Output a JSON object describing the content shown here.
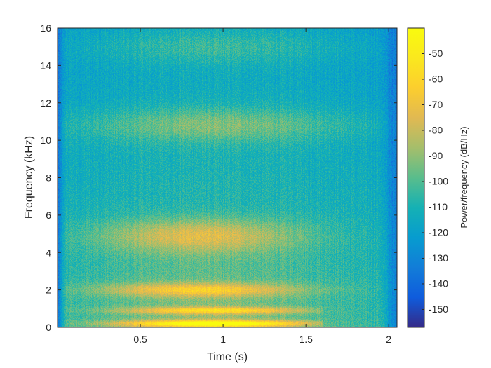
{
  "chart_data": {
    "type": "heatmap",
    "title": "",
    "xlabel": "Time (s)",
    "ylabel": "Frequency (kHz)",
    "xlim": [
      0.0,
      2.05
    ],
    "ylim": [
      0,
      16
    ],
    "xticks": [
      0.5,
      1,
      1.5,
      2
    ],
    "xtick_labels": [
      "0.5",
      "1",
      "1.5",
      "2"
    ],
    "yticks": [
      0,
      2,
      4,
      6,
      8,
      10,
      12,
      14,
      16
    ],
    "ytick_labels": [
      "0",
      "2",
      "4",
      "6",
      "8",
      "10",
      "12",
      "14",
      "16"
    ],
    "grid": false,
    "colormap": "parula",
    "colorbar": {
      "label": "Power/frequency (dB/Hz)",
      "range": [
        -157,
        -40
      ],
      "ticks": [
        -50,
        -60,
        -70,
        -80,
        -90,
        -100,
        -110,
        -120,
        -130,
        -140,
        -150
      ],
      "tick_labels": [
        "-50",
        "-60",
        "-70",
        "-80",
        "-90",
        "-100",
        "-110",
        "-120",
        "-130",
        "-140",
        "-150"
      ]
    },
    "features": {
      "signal_time_range_s": [
        0.05,
        1.95
      ],
      "bright_bands_khz": [
        {
          "freq": 0.2,
          "level": -50
        },
        {
          "freq": 0.9,
          "level": -72
        },
        {
          "freq": 2.0,
          "level": -76
        },
        {
          "freq": 4.9,
          "level": -80
        },
        {
          "freq": 10.8,
          "level": -90
        },
        {
          "freq": 15.0,
          "level": -98
        }
      ],
      "background_level": -110,
      "edge_level": -140
    }
  }
}
